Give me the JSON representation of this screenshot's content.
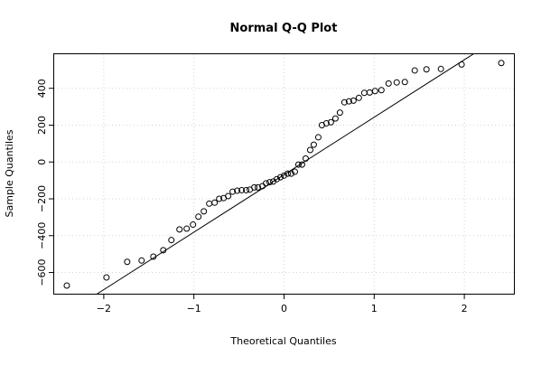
{
  "chart_data": {
    "type": "scatter",
    "title": "Normal Q-Q Plot",
    "xlabel": "Theoretical Quantiles",
    "ylabel": "Sample Quantiles",
    "xlim": [
      -2.55,
      2.55
    ],
    "ylim": [
      -715,
      585
    ],
    "x_ticks": [
      -2,
      -1,
      0,
      1,
      2
    ],
    "x_tick_labels": [
      "−2",
      "−1",
      "0",
      "1",
      "2"
    ],
    "y_ticks": [
      -600,
      -400,
      -200,
      0,
      200,
      400
    ],
    "y_tick_labels": [
      "−600",
      "−400",
      "−200",
      "0",
      "200",
      "400"
    ],
    "grid": true,
    "points": [
      [
        -2.41,
        -671
      ],
      [
        -1.97,
        -627
      ],
      [
        -1.74,
        -542
      ],
      [
        -1.58,
        -535
      ],
      [
        -1.45,
        -514
      ],
      [
        -1.34,
        -479
      ],
      [
        -1.25,
        -424
      ],
      [
        -1.16,
        -366
      ],
      [
        -1.08,
        -362
      ],
      [
        -1.01,
        -340
      ],
      [
        -0.95,
        -297
      ],
      [
        -0.89,
        -268
      ],
      [
        -0.83,
        -226
      ],
      [
        -0.77,
        -221
      ],
      [
        -0.72,
        -200
      ],
      [
        -0.67,
        -196
      ],
      [
        -0.62,
        -185
      ],
      [
        -0.57,
        -161
      ],
      [
        -0.52,
        -156
      ],
      [
        -0.47,
        -153
      ],
      [
        -0.42,
        -153
      ],
      [
        -0.38,
        -150
      ],
      [
        -0.33,
        -138
      ],
      [
        -0.29,
        -138
      ],
      [
        -0.24,
        -131
      ],
      [
        -0.2,
        -116
      ],
      [
        -0.16,
        -110
      ],
      [
        -0.12,
        -106
      ],
      [
        -0.08,
        -93
      ],
      [
        -0.04,
        -83
      ],
      [
        0.0,
        -74
      ],
      [
        0.04,
        -63
      ],
      [
        0.08,
        -63
      ],
      [
        0.12,
        -53
      ],
      [
        0.16,
        -14
      ],
      [
        0.2,
        -14
      ],
      [
        0.24,
        19
      ],
      [
        0.29,
        65
      ],
      [
        0.33,
        94
      ],
      [
        0.38,
        134
      ],
      [
        0.42,
        200
      ],
      [
        0.47,
        210
      ],
      [
        0.52,
        216
      ],
      [
        0.57,
        236
      ],
      [
        0.62,
        268
      ],
      [
        0.67,
        324
      ],
      [
        0.72,
        329
      ],
      [
        0.77,
        333
      ],
      [
        0.83,
        348
      ],
      [
        0.89,
        375
      ],
      [
        0.95,
        377
      ],
      [
        1.01,
        385
      ],
      [
        1.08,
        390
      ],
      [
        1.16,
        426
      ],
      [
        1.25,
        432
      ],
      [
        1.34,
        434
      ],
      [
        1.45,
        497
      ],
      [
        1.58,
        503
      ],
      [
        1.74,
        505
      ],
      [
        1.97,
        529
      ],
      [
        2.41,
        537
      ]
    ],
    "qq_line": {
      "intercept": -69,
      "slope": 312
    }
  }
}
